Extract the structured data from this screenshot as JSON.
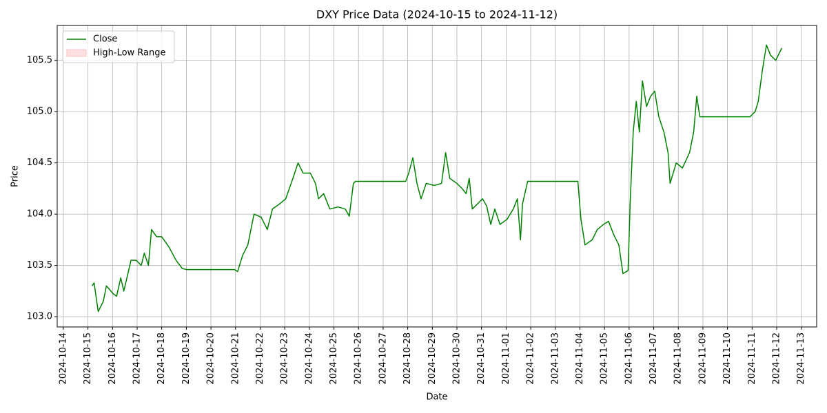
{
  "chart_data": {
    "type": "line",
    "title": "DXY Price Data (2024-10-15 to 2024-11-12)",
    "x_label": "Date",
    "y_label": "Price",
    "x": [
      "2024-10-15 04:00",
      "2024-10-15 06:00",
      "2024-10-15 10:00",
      "2024-10-15 15:00",
      "2024-10-15 18:00",
      "2024-10-16 01:00",
      "2024-10-16 04:00",
      "2024-10-16 08:00",
      "2024-10-16 11:00",
      "2024-10-16 18:00",
      "2024-10-16 23:00",
      "2024-10-17 04:00",
      "2024-10-17 07:00",
      "2024-10-17 11:00",
      "2024-10-17 14:00",
      "2024-10-17 19:00",
      "2024-10-18 00:00",
      "2024-10-18 07:00",
      "2024-10-18 14:00",
      "2024-10-18 20:00",
      "2024-10-19 00:00",
      "2024-10-20 23:00",
      "2024-10-21 02:00",
      "2024-10-21 07:00",
      "2024-10-21 12:00",
      "2024-10-21 18:00",
      "2024-10-22 01:00",
      "2024-10-22 07:00",
      "2024-10-22 12:00",
      "2024-10-22 19:00",
      "2024-10-23 01:00",
      "2024-10-23 08:00",
      "2024-10-23 13:00",
      "2024-10-23 18:00",
      "2024-10-24 01:00",
      "2024-10-24 06:00",
      "2024-10-24 09:00",
      "2024-10-24 14:00",
      "2024-10-24 20:00",
      "2024-10-25 04:00",
      "2024-10-25 11:00",
      "2024-10-25 15:00",
      "2024-10-25 19:00",
      "2024-10-25 21:00",
      "2024-10-27 22:00",
      "2024-10-28 01:00",
      "2024-10-28 05:00",
      "2024-10-28 09:00",
      "2024-10-28 13:00",
      "2024-10-28 18:00",
      "2024-10-29 02:00",
      "2024-10-29 09:00",
      "2024-10-29 13:00",
      "2024-10-29 17:00",
      "2024-10-30 00:00",
      "2024-10-30 05:00",
      "2024-10-30 09:00",
      "2024-10-30 12:00",
      "2024-10-30 15:00",
      "2024-10-30 20:00",
      "2024-10-31 01:00",
      "2024-10-31 05:00",
      "2024-10-31 09:00",
      "2024-10-31 13:00",
      "2024-10-31 18:00",
      "2024-11-01 01:00",
      "2024-11-01 07:00",
      "2024-11-01 11:00",
      "2024-11-01 14:00",
      "2024-11-01 16:00",
      "2024-11-01 21:00",
      "2024-11-03 22:00",
      "2024-11-04 01:00",
      "2024-11-04 05:00",
      "2024-11-04 12:00",
      "2024-11-04 17:00",
      "2024-11-04 23:00",
      "2024-11-05 04:00",
      "2024-11-05 09:00",
      "2024-11-05 14:00",
      "2024-11-05 18:00",
      "2024-11-05 23:00",
      "2024-11-06 01:00",
      "2024-11-06 04:00",
      "2024-11-06 07:00",
      "2024-11-06 10:00",
      "2024-11-06 13:00",
      "2024-11-06 17:00",
      "2024-11-06 21:00",
      "2024-11-07 01:00",
      "2024-11-07 05:00",
      "2024-11-07 10:00",
      "2024-11-07 14:00",
      "2024-11-07 16:00",
      "2024-11-07 22:00",
      "2024-11-08 04:00",
      "2024-11-08 11:00",
      "2024-11-08 15:00",
      "2024-11-08 18:00",
      "2024-11-08 21:00",
      "2024-11-10 22:00",
      "2024-11-11 03:00",
      "2024-11-11 06:00",
      "2024-11-11 10:00",
      "2024-11-11 14:00",
      "2024-11-11 18:00",
      "2024-11-11 23:00",
      "2024-11-12 03:00",
      "2024-11-12 05:00"
    ],
    "series": [
      {
        "name": "Close",
        "color": "#008000",
        "values": [
          103.3,
          103.33,
          103.05,
          103.15,
          103.3,
          103.22,
          103.2,
          103.38,
          103.25,
          103.55,
          103.55,
          103.5,
          103.62,
          103.5,
          103.85,
          103.78,
          103.78,
          103.68,
          103.55,
          103.47,
          103.46,
          103.46,
          103.44,
          103.6,
          103.7,
          104.0,
          103.97,
          103.85,
          104.05,
          104.1,
          104.15,
          104.35,
          104.5,
          104.4,
          104.4,
          104.3,
          104.15,
          104.2,
          104.05,
          104.07,
          104.05,
          103.98,
          104.3,
          104.32,
          104.32,
          104.4,
          104.55,
          104.3,
          104.15,
          104.3,
          104.28,
          104.3,
          104.6,
          104.35,
          104.3,
          104.25,
          104.2,
          104.35,
          104.05,
          104.1,
          104.15,
          104.08,
          103.9,
          104.05,
          103.9,
          103.95,
          104.05,
          104.15,
          103.75,
          104.1,
          104.32,
          104.32,
          103.95,
          103.7,
          103.75,
          103.85,
          103.9,
          103.93,
          103.8,
          103.7,
          103.42,
          103.45,
          104.1,
          104.8,
          105.1,
          104.8,
          105.3,
          105.05,
          105.15,
          105.2,
          104.95,
          104.8,
          104.6,
          104.3,
          104.5,
          104.45,
          104.6,
          104.8,
          105.15,
          104.95,
          104.95,
          105.0,
          105.1,
          105.4,
          105.65,
          105.55,
          105.5,
          105.58,
          105.62
        ]
      },
      {
        "name": "High-Low Range",
        "color": "#ffcccc"
      }
    ],
    "xlim": [
      "2024-10-13 18:00",
      "2024-11-13 15:00"
    ],
    "xticks": [
      "2024-10-14",
      "2024-10-15",
      "2024-10-16",
      "2024-10-17",
      "2024-10-18",
      "2024-10-19",
      "2024-10-20",
      "2024-10-21",
      "2024-10-22",
      "2024-10-23",
      "2024-10-24",
      "2024-10-25",
      "2024-10-26",
      "2024-10-27",
      "2024-10-28",
      "2024-10-29",
      "2024-10-30",
      "2024-10-31",
      "2024-11-01",
      "2024-11-02",
      "2024-11-03",
      "2024-11-04",
      "2024-11-05",
      "2024-11-06",
      "2024-11-07",
      "2024-11-08",
      "2024-11-09",
      "2024-11-10",
      "2024-11-11",
      "2024-11-12",
      "2024-11-13"
    ],
    "ylim": [
      102.9,
      105.84
    ],
    "yticks": [
      {
        "value": 103,
        "label": "103.0"
      },
      103.5,
      {
        "value": 104,
        "label": "104.0"
      },
      104.5,
      {
        "value": 105,
        "label": "105.0"
      },
      105.5
    ],
    "grid": true,
    "legend": "upper left"
  }
}
